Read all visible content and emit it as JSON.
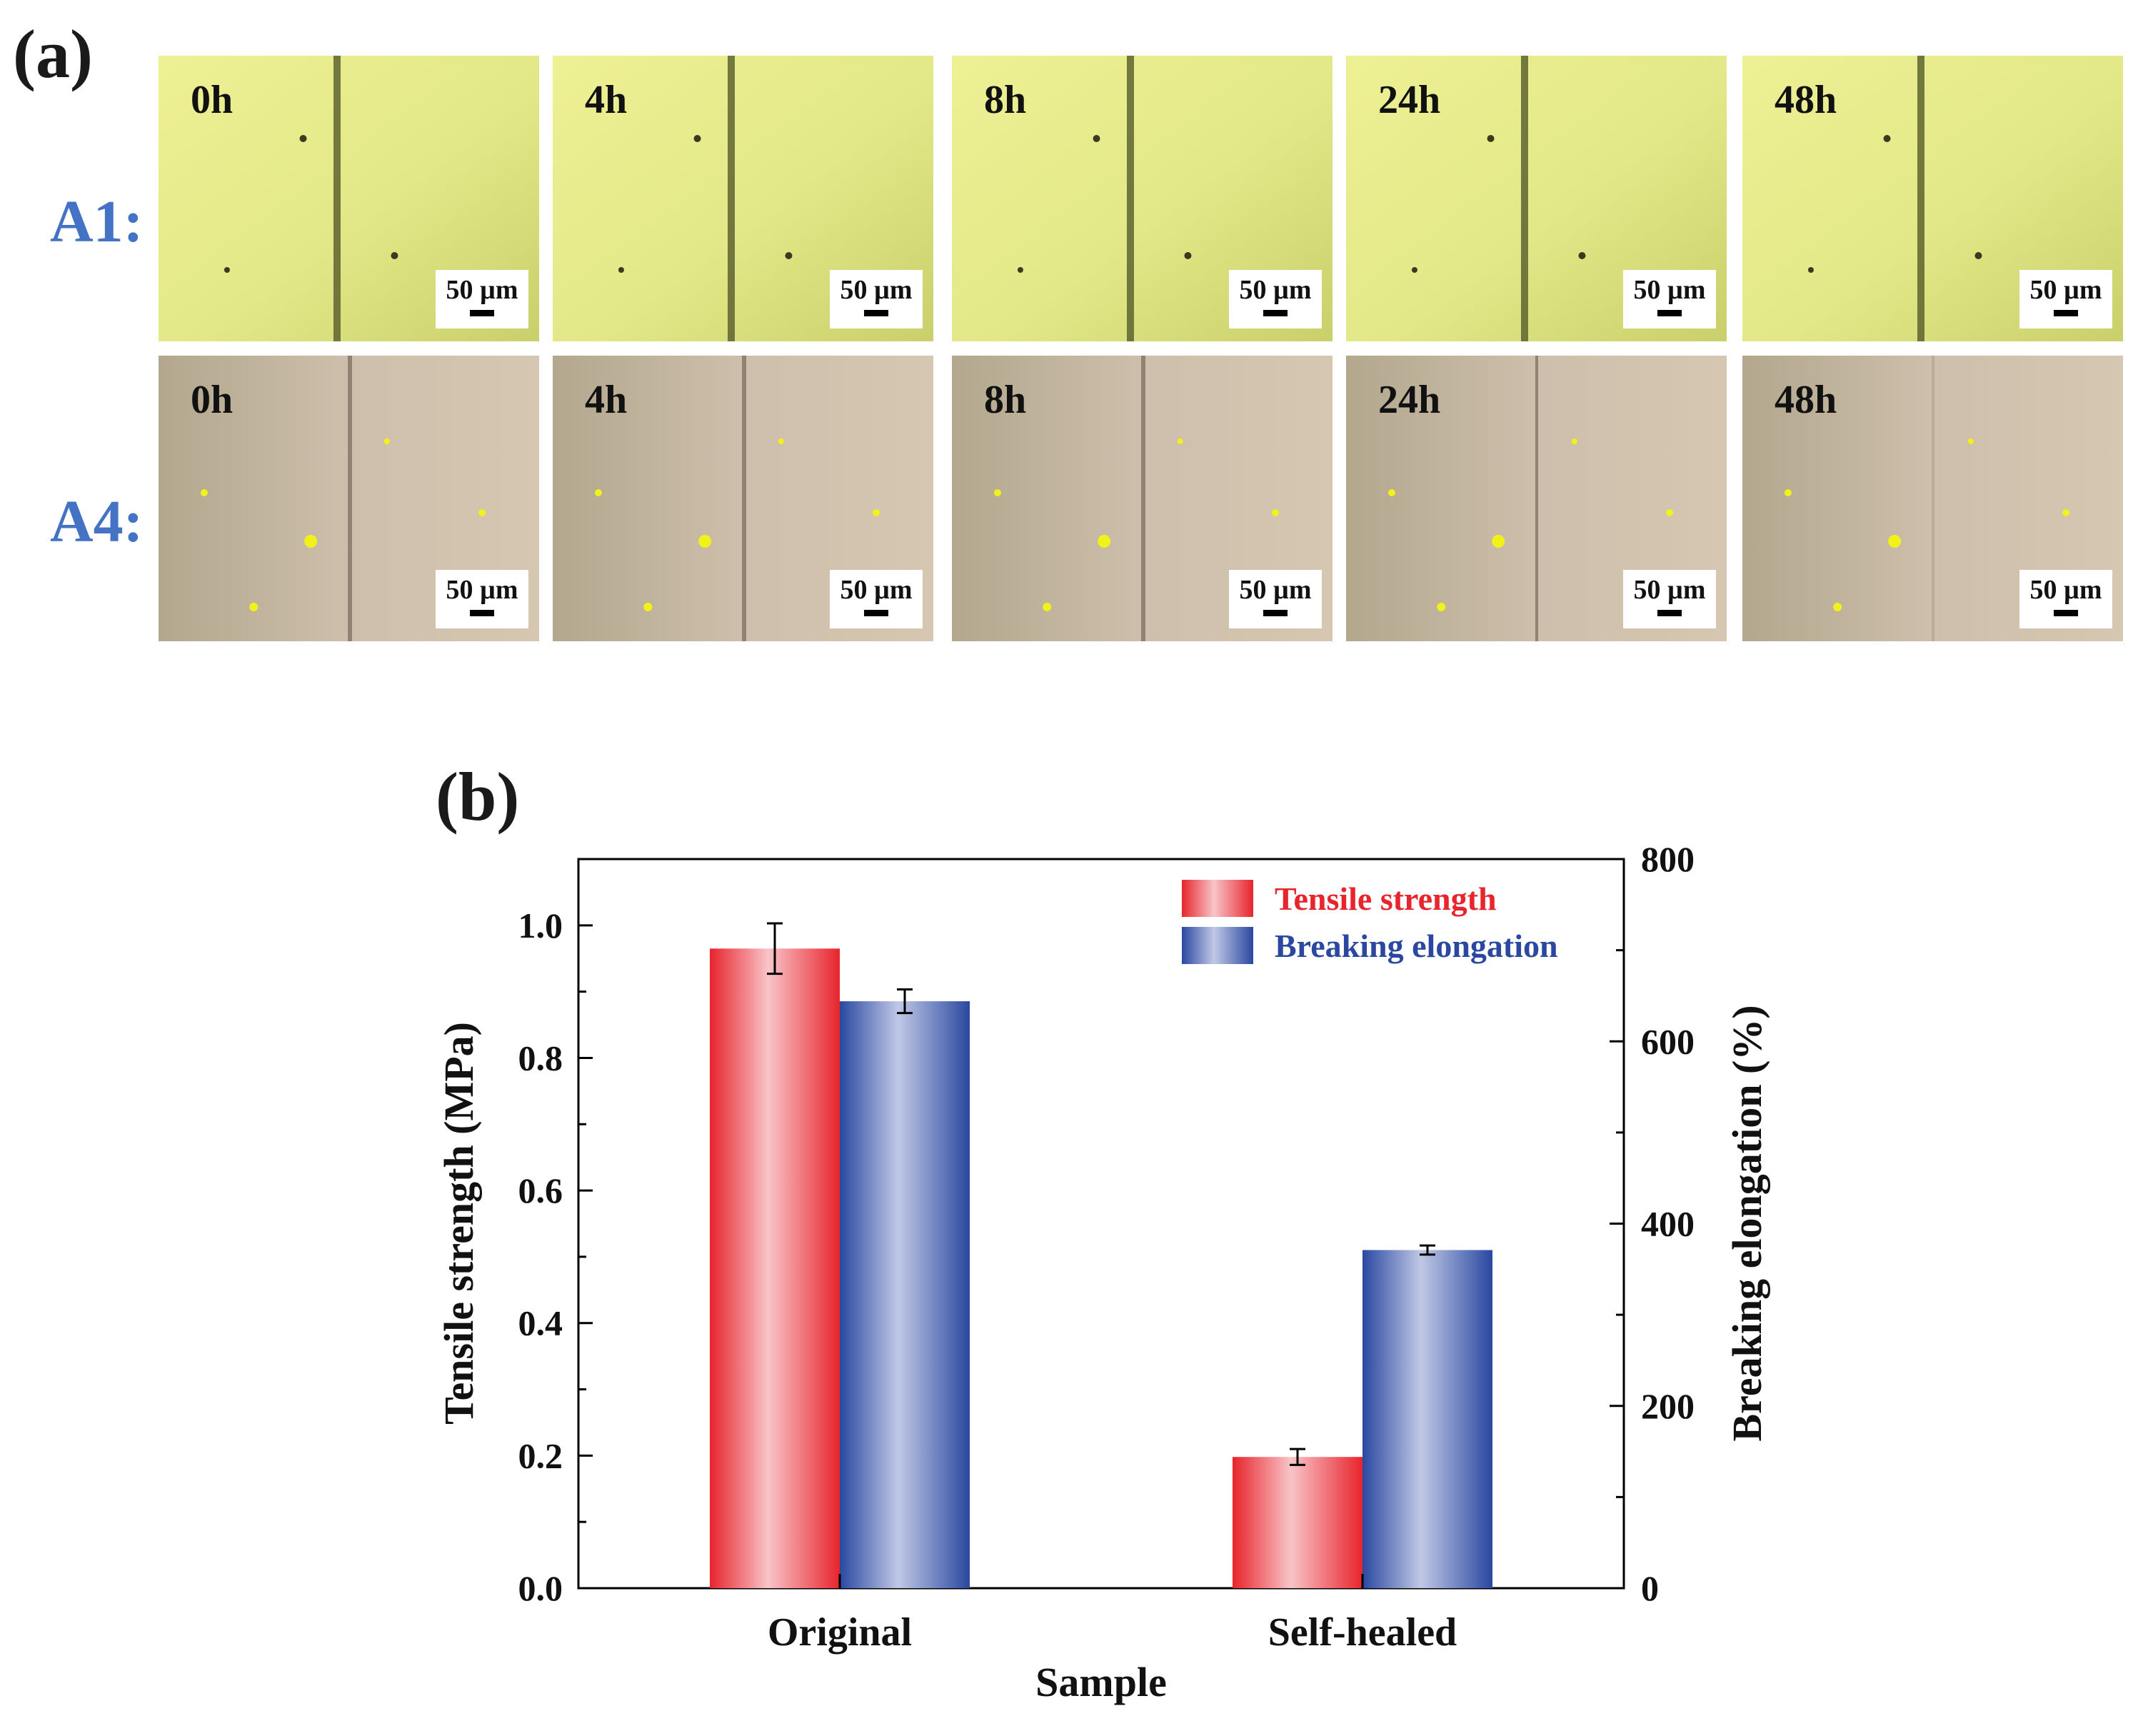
{
  "panel_a": {
    "label": "(a)",
    "rows": [
      {
        "label": "A1:",
        "tiles": [
          {
            "time": "0h",
            "scale": "50 µm"
          },
          {
            "time": "4h",
            "scale": "50 µm"
          },
          {
            "time": "8h",
            "scale": "50 µm"
          },
          {
            "time": "24h",
            "scale": "50 µm"
          },
          {
            "time": "48h",
            "scale": "50 µm"
          }
        ]
      },
      {
        "label": "A4:",
        "tiles": [
          {
            "time": "0h",
            "scale": "50 µm"
          },
          {
            "time": "4h",
            "scale": "50 µm"
          },
          {
            "time": "8h",
            "scale": "50 µm"
          },
          {
            "time": "24h",
            "scale": "50 µm"
          },
          {
            "time": "48h",
            "scale": "50 µm"
          }
        ]
      }
    ]
  },
  "panel_b": {
    "label": "(b)"
  },
  "colors": {
    "red": "#e8242c",
    "red_light": "#f8c4c8",
    "blue": "#2a48a0",
    "blue_light": "#c0c8e6",
    "a1_tile": "#e6eb8c",
    "a4_tile": "#c8b9a4",
    "row_label": "#4472c4"
  },
  "chart_data": {
    "type": "bar",
    "xlabel": "Sample",
    "ylabel": "Tensile strength (MPa)",
    "y2label": "Breaking elongation (%)",
    "categories": [
      "Original",
      "Self-healed"
    ],
    "ylim": [
      0,
      1.1
    ],
    "y2lim": [
      0,
      800
    ],
    "yticks": [
      "0.0",
      "0.2",
      "0.4",
      "0.6",
      "0.8",
      "1.0"
    ],
    "y2ticks": [
      "0",
      "200",
      "400",
      "600",
      "800"
    ],
    "legend_position": "top-right",
    "series": [
      {
        "name": "Tensile strength",
        "axis": "left",
        "values": [
          0.965,
          0.198
        ],
        "errors": [
          0.038,
          0.012
        ]
      },
      {
        "name": "Breaking elongation",
        "axis": "right",
        "values": [
          644,
          371
        ],
        "errors": [
          13,
          5
        ]
      }
    ]
  }
}
